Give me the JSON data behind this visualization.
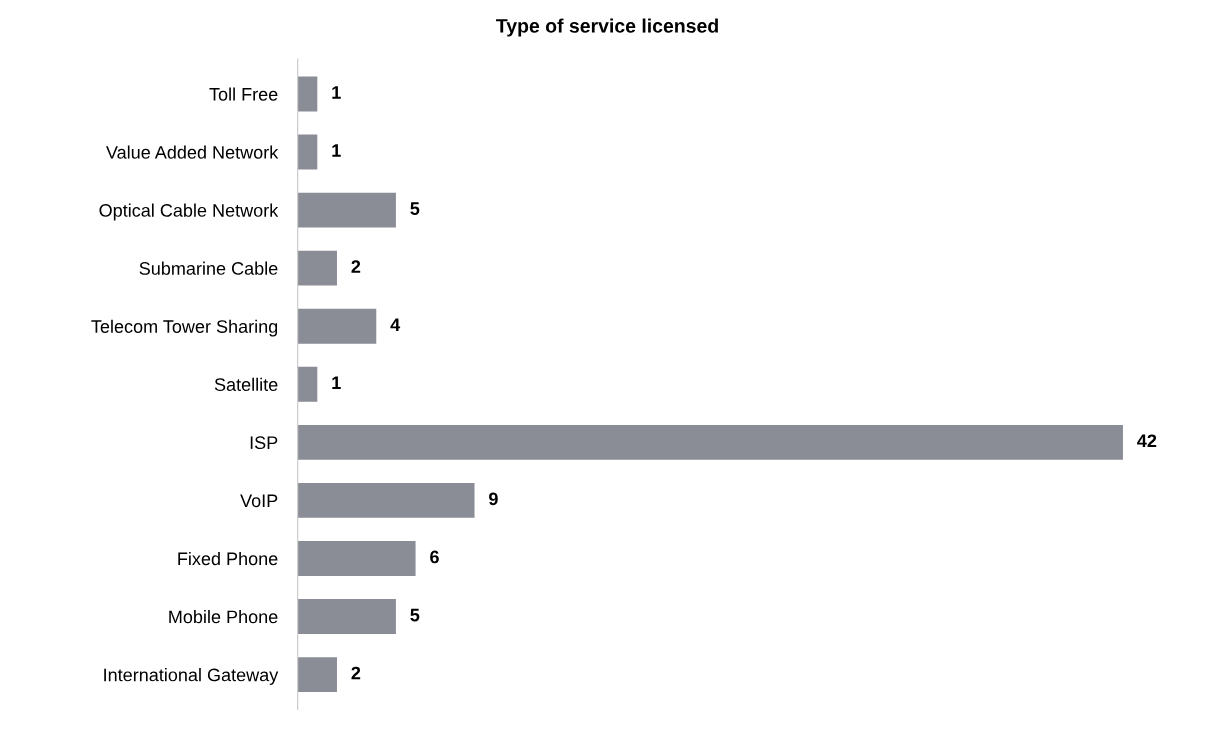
{
  "chart_data": {
    "type": "bar",
    "orientation": "horizontal",
    "title": "Type of service licensed",
    "categories": [
      "Toll Free",
      "Value Added Network",
      "Optical Cable Network",
      "Submarine Cable",
      "Telecom Tower Sharing",
      "Satellite",
      "ISP",
      "VoIP",
      "Fixed Phone",
      "Mobile Phone",
      "International Gateway"
    ],
    "values": [
      1,
      1,
      5,
      2,
      4,
      1,
      42,
      9,
      6,
      5,
      2
    ],
    "color": "#8a8d96",
    "data_labels": true,
    "grid": false,
    "legend": false,
    "tick_labels": "y"
  }
}
